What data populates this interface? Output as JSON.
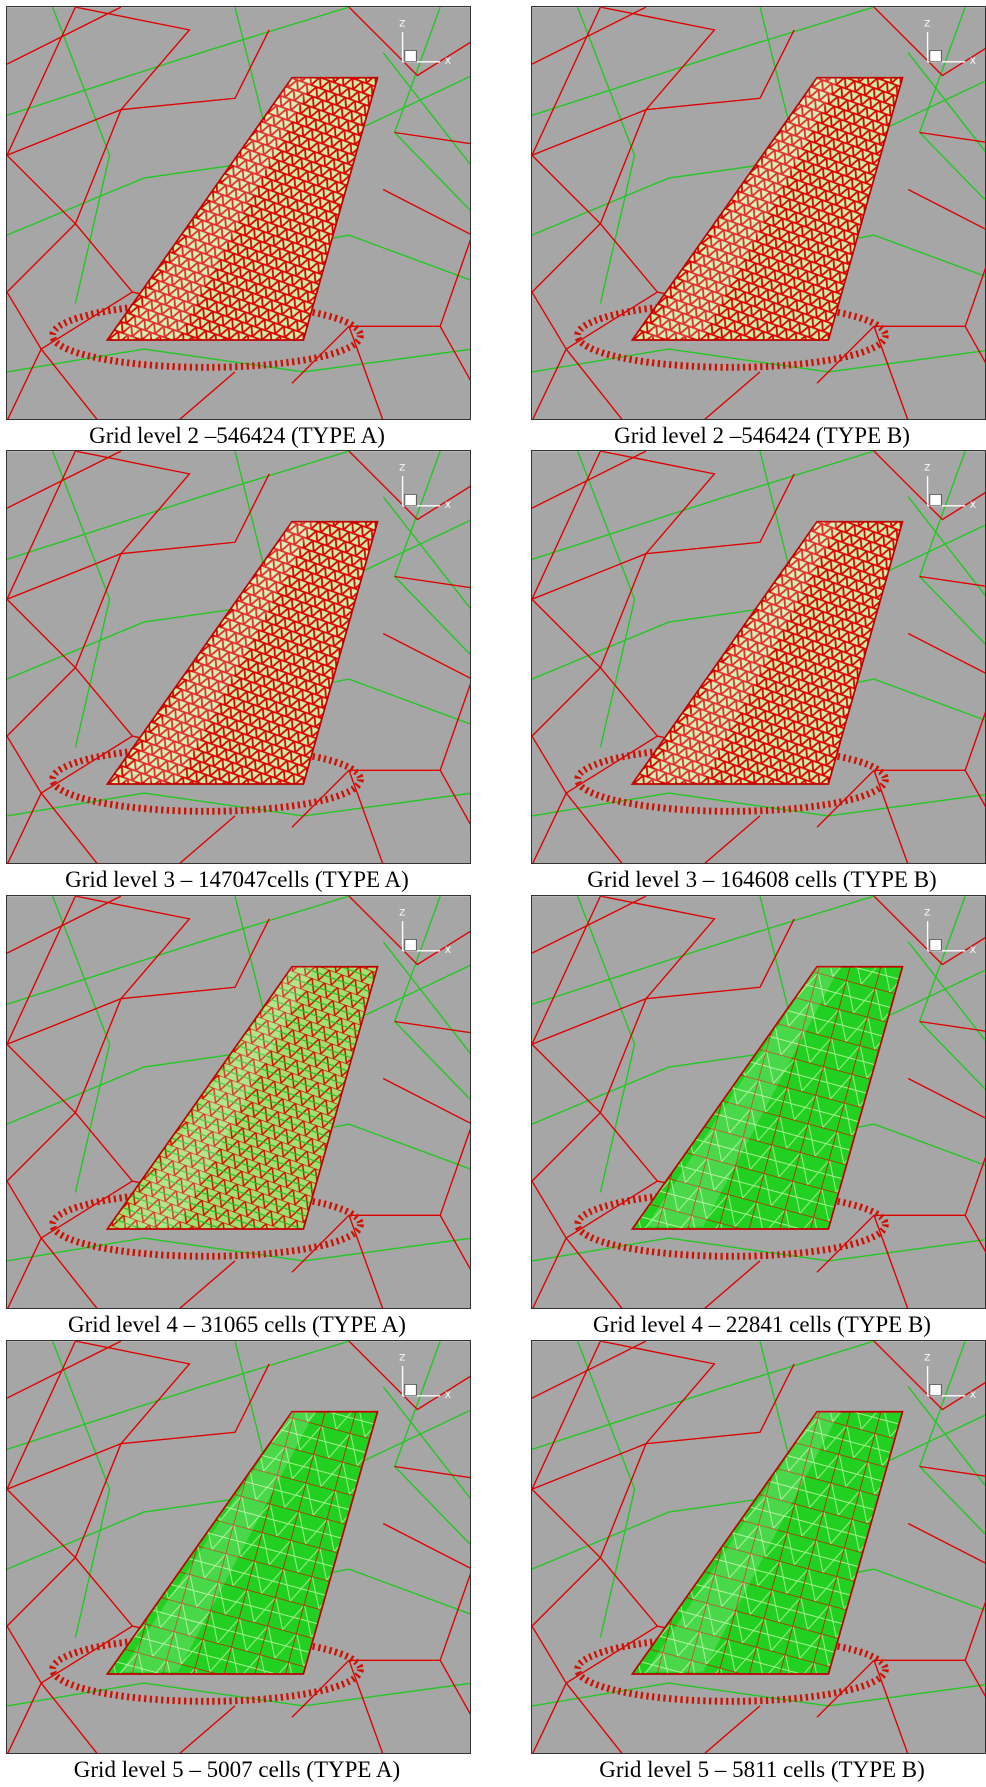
{
  "axes": {
    "z": "Z",
    "x": "X"
  },
  "panels": [
    {
      "caption": "Grid level 2 –546424 (TYPE A)"
    },
    {
      "caption": "Grid level 2 –546424 (TYPE B)"
    },
    {
      "caption": "Grid level 3 – 147047cells (TYPE A)"
    },
    {
      "caption": "Grid level 3 – 164608 cells (TYPE B)"
    },
    {
      "caption": "Grid level 4 – 31065 cells (TYPE A)"
    },
    {
      "caption": "Grid level 4 – 22841 cells (TYPE B)"
    },
    {
      "caption": "Grid level 5 – 5007 cells (TYPE A)"
    },
    {
      "caption": "Grid level 5 – 5811 cells (TYPE B)"
    }
  ]
}
